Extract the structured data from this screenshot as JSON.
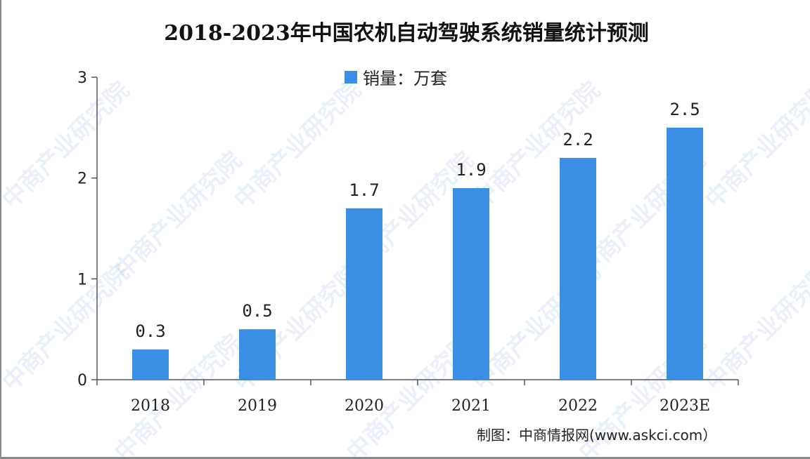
{
  "title": "2018-2023年中国农机自动驾驶系统销量统计预测",
  "source": "制图：中商情报网(www.askci.com）",
  "watermark": "中商产业研究院",
  "colors": {
    "bar": "#3a8fe5",
    "axis": "#555566"
  },
  "chart_data": {
    "type": "bar",
    "title": "2018-2023年中国农机自动驾驶系统销量统计预测",
    "categories": [
      "2018",
      "2019",
      "2020",
      "2021",
      "2022",
      "2023E"
    ],
    "series": [
      {
        "name": "销量：万套",
        "values": [
          0.3,
          0.5,
          1.7,
          1.9,
          2.2,
          2.5
        ]
      }
    ],
    "data_labels": [
      "0.3",
      "0.5",
      "1.7",
      "1.9",
      "2.2",
      "2.5"
    ],
    "yticks": [
      "0",
      "1",
      "2",
      "3"
    ],
    "ylim": [
      0,
      3
    ],
    "grid": false,
    "legend": "top-center"
  }
}
